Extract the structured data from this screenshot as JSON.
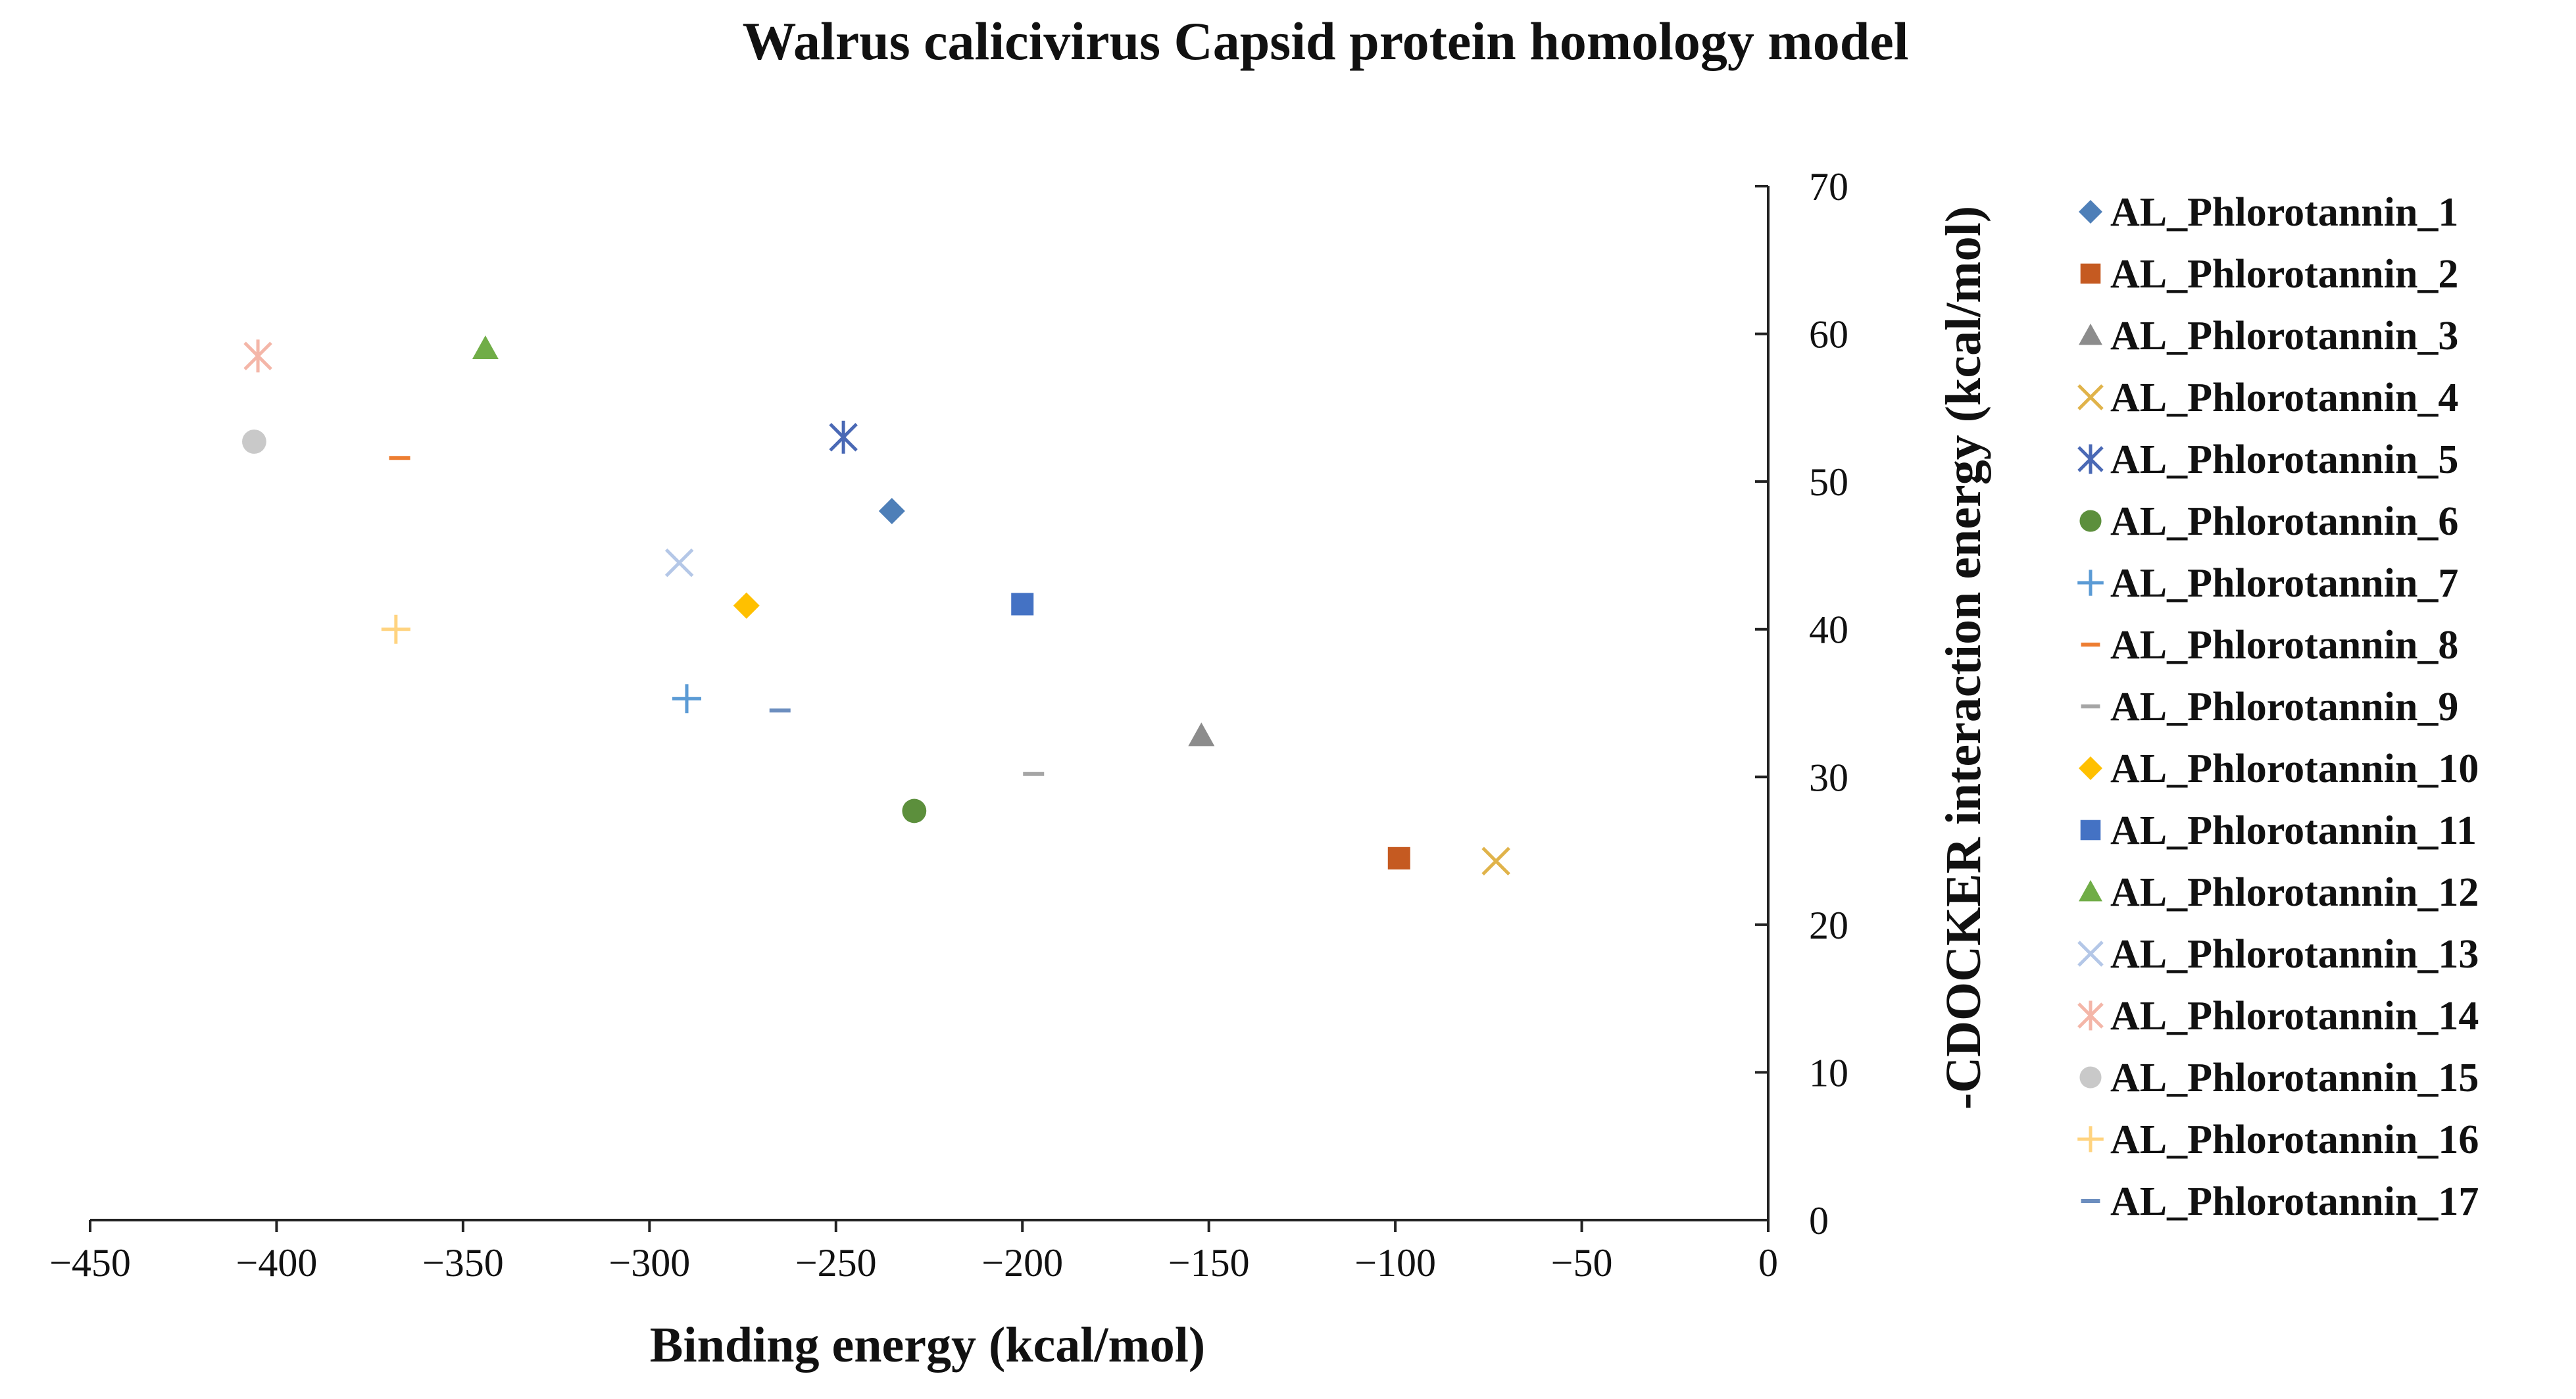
{
  "chart_data": {
    "type": "scatter",
    "title": "Walrus calicivirus  Capsid protein homology model",
    "xlabel": "Binding energy (kcal/mol)",
    "ylabel": "-CDOCKER interaction energy (kcal/mol)",
    "xlim": [
      -450,
      0
    ],
    "ylim": [
      0,
      70
    ],
    "x_ticks": [
      -450,
      -400,
      -350,
      -300,
      -250,
      -200,
      -150,
      -100,
      -50,
      0
    ],
    "x_tick_labels": [
      "−450",
      "−400",
      "−350",
      "−300",
      "−250",
      "−200",
      "−150",
      "−100",
      "−50",
      "0"
    ],
    "y_ticks": [
      0,
      10,
      20,
      30,
      40,
      50,
      60,
      70
    ],
    "y_tick_labels": [
      "0",
      "10",
      "20",
      "30",
      "40",
      "50",
      "60",
      "70"
    ],
    "legend_position": "right",
    "series": [
      {
        "name": "AL_Phlorotannin_1",
        "marker": "diamond",
        "color": "#4e7fb8",
        "x": -235,
        "y": 48
      },
      {
        "name": "AL_Phlorotannin_2",
        "marker": "square",
        "color": "#c55a21",
        "x": -99,
        "y": 24.5
      },
      {
        "name": "AL_Phlorotannin_3",
        "marker": "triangle",
        "color": "#8c8c8c",
        "x": -152,
        "y": 32.8
      },
      {
        "name": "AL_Phlorotannin_4",
        "marker": "x",
        "color": "#e0b34a",
        "x": -73,
        "y": 24.3
      },
      {
        "name": "AL_Phlorotannin_5",
        "marker": "asterisk",
        "color": "#4a69b5",
        "x": -248,
        "y": 53
      },
      {
        "name": "AL_Phlorotannin_6",
        "marker": "circle",
        "color": "#5c8f3c",
        "x": -229,
        "y": 27.7
      },
      {
        "name": "AL_Phlorotannin_7",
        "marker": "plus",
        "color": "#5b9bd5",
        "x": -290,
        "y": 35.3
      },
      {
        "name": "AL_Phlorotannin_8",
        "marker": "dash",
        "color": "#ed7d31",
        "x": -367,
        "y": 51.6
      },
      {
        "name": "AL_Phlorotannin_9",
        "marker": "dash",
        "color": "#a5a5a5",
        "x": -197,
        "y": 30.2
      },
      {
        "name": "AL_Phlorotannin_10",
        "marker": "diamond",
        "color": "#ffc000",
        "x": -274,
        "y": 41.6
      },
      {
        "name": "AL_Phlorotannin_11",
        "marker": "square",
        "color": "#4472c4",
        "x": -200,
        "y": 41.7
      },
      {
        "name": "AL_Phlorotannin_12",
        "marker": "triangle",
        "color": "#70ad47",
        "x": -344,
        "y": 59
      },
      {
        "name": "AL_Phlorotannin_13",
        "marker": "x",
        "color": "#b4c7e7",
        "x": -292,
        "y": 44.5
      },
      {
        "name": "AL_Phlorotannin_14",
        "marker": "asterisk",
        "color": "#f4b6a8",
        "x": -405,
        "y": 58.5
      },
      {
        "name": "AL_Phlorotannin_15",
        "marker": "circle",
        "color": "#c9c9c9",
        "x": -406,
        "y": 52.7
      },
      {
        "name": "AL_Phlorotannin_16",
        "marker": "plus",
        "color": "#ffd37f",
        "x": -368,
        "y": 40
      },
      {
        "name": "AL_Phlorotannin_17",
        "marker": "dash",
        "color": "#6c8ebf",
        "x": -265,
        "y": 34.5
      }
    ]
  }
}
